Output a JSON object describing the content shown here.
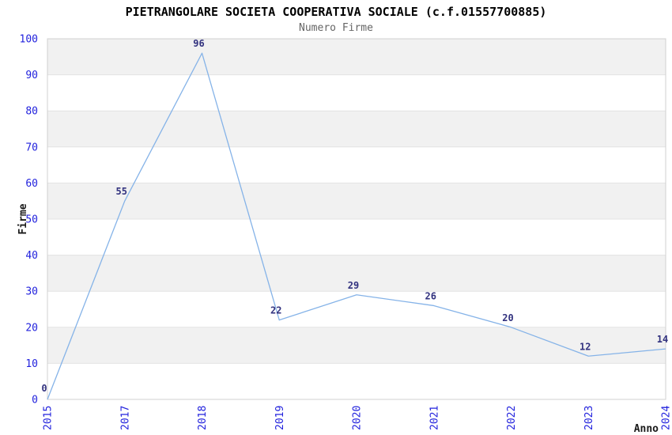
{
  "chart_data": {
    "type": "line",
    "title": "PIETRANGOLARE SOCIETA COOPERATIVA SOCIALE (c.f.01557700885)",
    "subtitle": "Numero Firme",
    "categories": [
      "2015",
      "2017",
      "2018",
      "2019",
      "2020",
      "2021",
      "2022",
      "2023",
      "2024"
    ],
    "series": [
      {
        "name": "Numero Firme",
        "values": [
          0,
          55,
          96,
          22,
          29,
          26,
          20,
          12,
          14
        ]
      }
    ],
    "xlabel": "Anno",
    "ylabel": "Firme",
    "ylim": [
      0,
      100
    ],
    "ytick_step": 10,
    "yticks": [
      0,
      10,
      20,
      30,
      40,
      50,
      60,
      70,
      80,
      90,
      100
    ],
    "grid": "alternating-horizontal-bands",
    "legend": "none",
    "markers": "none",
    "x_tick_rotation": 90,
    "colors": {
      "line": "#85b3e8",
      "tick_labels": "#2222dd",
      "value_labels": "#32327f",
      "band": "#f1f1f1",
      "gridline": "#e3e3e3",
      "plot_border": "#d0d0d0",
      "title": "#000000",
      "subtitle": "#666666",
      "axis_titles": "#1a1a1a",
      "background": "#ffffff"
    }
  }
}
